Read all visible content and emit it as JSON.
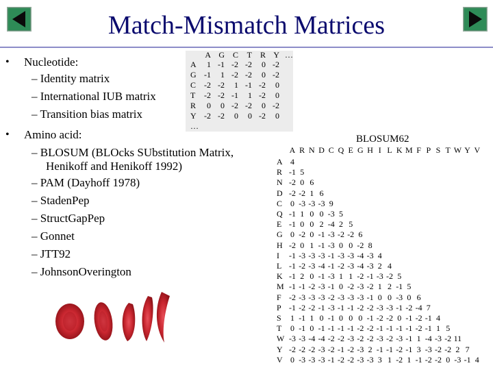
{
  "title": "Match-Mismatch Matrices",
  "nav": {
    "prev_icon": "left-triangle-icon",
    "next_icon": "right-triangle-icon",
    "button_color": "#2e8b57"
  },
  "bullets": [
    {
      "mark": "•",
      "label": "Nucleotide:",
      "items": [
        "– Identity matrix",
        "– International IUB matrix",
        "– Transition bias matrix"
      ]
    },
    {
      "mark": "•",
      "label": "Amino acid:",
      "items": [
        "– BLOSUM (BLOcks SUbstitution Matrix,",
        "Henikoff and Henikoff 1992)",
        "– PAM (Dayhoff 1978)",
        "– StadenPep",
        "– StructGapPep",
        "– Gonnet",
        "– JTT92",
        "– JohnsonOverington"
      ]
    }
  ],
  "nucleotide_matrix": {
    "columns": [
      "A",
      "G",
      "C",
      "T",
      "R",
      "Y",
      "…"
    ],
    "rows": [
      {
        "label": "A",
        "values": [
          "1",
          "-1",
          "-2",
          "-2",
          "0",
          "-2"
        ]
      },
      {
        "label": "G",
        "values": [
          "-1",
          "1",
          "-2",
          "-2",
          "0",
          "-2"
        ]
      },
      {
        "label": "C",
        "values": [
          "-2",
          "-2",
          "1",
          "-1",
          "-2",
          "0"
        ]
      },
      {
        "label": "T",
        "values": [
          "-2",
          "-2",
          "-1",
          "1",
          "-2",
          "0"
        ]
      },
      {
        "label": "R",
        "values": [
          "0",
          "0",
          "-2",
          "-2",
          "0",
          "-2"
        ]
      },
      {
        "label": "Y",
        "values": [
          "-2",
          "-2",
          "0",
          "0",
          "-2",
          "0"
        ]
      },
      {
        "label": "…",
        "values": []
      }
    ]
  },
  "blosum": {
    "title": "BLOSUM62",
    "columns": [
      "A",
      "R",
      "N",
      "D",
      "C",
      "Q",
      "E",
      "G",
      "H",
      "I",
      "L",
      "K",
      "M",
      "F",
      "P",
      "S",
      "T",
      "W",
      "Y",
      "V"
    ],
    "rows": [
      {
        "label": "A",
        "values": [
          "4"
        ]
      },
      {
        "label": "R",
        "values": [
          "-1",
          "5"
        ]
      },
      {
        "label": "N",
        "values": [
          "-2",
          "0",
          "6"
        ]
      },
      {
        "label": "D",
        "values": [
          "-2",
          "-2",
          "1",
          "6"
        ]
      },
      {
        "label": "C",
        "values": [
          "0",
          "-3",
          "-3",
          "-3",
          "9"
        ]
      },
      {
        "label": "Q",
        "values": [
          "-1",
          "1",
          "0",
          "0",
          "-3",
          "5"
        ]
      },
      {
        "label": "E",
        "values": [
          "-1",
          "0",
          "0",
          "2",
          "-4",
          "2",
          "5"
        ]
      },
      {
        "label": "G",
        "values": [
          "0",
          "-2",
          "0",
          "-1",
          "-3",
          "-2",
          "-2",
          "6"
        ]
      },
      {
        "label": "H",
        "values": [
          "-2",
          "0",
          "1",
          "-1",
          "-3",
          "0",
          "0",
          "-2",
          "8"
        ]
      },
      {
        "label": "I",
        "values": [
          "-1",
          "-3",
          "-3",
          "-3",
          "-1",
          "-3",
          "-3",
          "-4",
          "-3",
          "4"
        ]
      },
      {
        "label": "L",
        "values": [
          "-1",
          "-2",
          "-3",
          "-4",
          "-1",
          "-2",
          "-3",
          "-4",
          "-3",
          "2",
          "4"
        ]
      },
      {
        "label": "K",
        "values": [
          "-1",
          "2",
          "0",
          "-1",
          "-3",
          "1",
          "1",
          "-2",
          "-1",
          "-3",
          "-2",
          "5"
        ]
      },
      {
        "label": "M",
        "values": [
          "-1",
          "-1",
          "-2",
          "-3",
          "-1",
          "0",
          "-2",
          "-3",
          "-2",
          "1",
          "2",
          "-1",
          "5"
        ]
      },
      {
        "label": "F",
        "values": [
          "-2",
          "-3",
          "-3",
          "-3",
          "-2",
          "-3",
          "-3",
          "-3",
          "-1",
          "0",
          "0",
          "-3",
          "0",
          "6"
        ]
      },
      {
        "label": "P",
        "values": [
          "-1",
          "-2",
          "-2",
          "-1",
          "-3",
          "-1",
          "-1",
          "-2",
          "-2",
          "-3",
          "-3",
          "-1",
          "-2",
          "-4",
          "7"
        ]
      },
      {
        "label": "S",
        "values": [
          "1",
          "-1",
          "1",
          "0",
          "-1",
          "0",
          "0",
          "0",
          "-1",
          "-2",
          "-2",
          "0",
          "-1",
          "-2",
          "-1",
          "4"
        ]
      },
      {
        "label": "T",
        "values": [
          "0",
          "-1",
          "0",
          "-1",
          "-1",
          "-1",
          "-1",
          "-2",
          "-2",
          "-1",
          "-1",
          "-1",
          "-1",
          "-2",
          "-1",
          "1",
          "5"
        ]
      },
      {
        "label": "W",
        "values": [
          "-3",
          "-3",
          "-4",
          "-4",
          "-2",
          "-2",
          "-3",
          "-2",
          "-2",
          "-3",
          "-2",
          "-3",
          "-1",
          "1",
          "-4",
          "-3",
          "-2",
          "11"
        ]
      },
      {
        "label": "Y",
        "values": [
          "-2",
          "-2",
          "-2",
          "-3",
          "-2",
          "-1",
          "-2",
          "-3",
          "2",
          "-1",
          "-1",
          "-2",
          "-1",
          "3",
          "-3",
          "-2",
          "-2",
          "2",
          "7"
        ]
      },
      {
        "label": "V",
        "values": [
          "0",
          "-3",
          "-3",
          "-3",
          "-1",
          "-2",
          "-2",
          "-3",
          "-3",
          "3",
          "1",
          "-2",
          "1",
          "-1",
          "-2",
          "-2",
          "0",
          "-3",
          "-1",
          "4"
        ]
      }
    ]
  },
  "image": {
    "subject": "red blood cells, normal and sickle-shaped",
    "color": "#c0272d"
  }
}
